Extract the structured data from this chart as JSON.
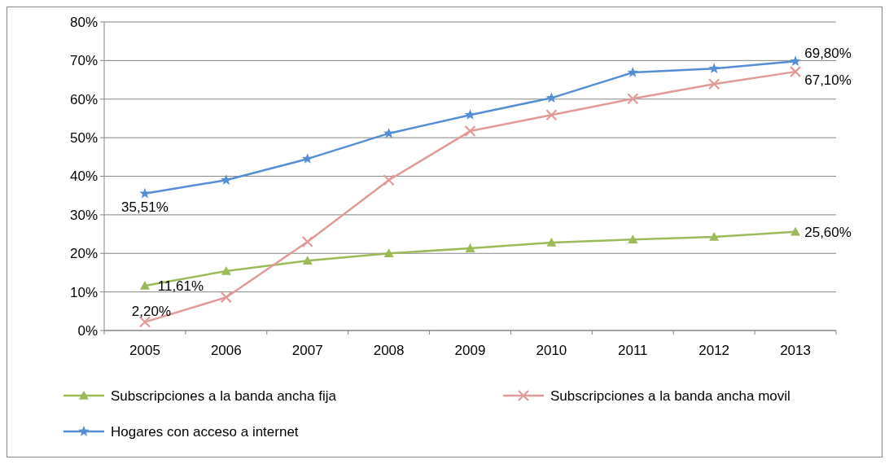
{
  "chart_data": {
    "type": "line",
    "categories": [
      "2005",
      "2006",
      "2007",
      "2008",
      "2009",
      "2010",
      "2011",
      "2012",
      "2013"
    ],
    "ylim": [
      0,
      80
    ],
    "yticks": [
      {
        "value": 0,
        "label": "0%"
      },
      {
        "value": 10,
        "label": "10%"
      },
      {
        "value": 20,
        "label": "20%"
      },
      {
        "value": 30,
        "label": "30%"
      },
      {
        "value": 40,
        "label": "40%"
      },
      {
        "value": 50,
        "label": "50%"
      },
      {
        "value": 60,
        "label": "60%"
      },
      {
        "value": 70,
        "label": "70%"
      },
      {
        "value": 80,
        "label": "80%"
      }
    ],
    "grid": "y",
    "legend": "bottom",
    "series": [
      {
        "name": "Subscripciones a la banda ancha fija",
        "color": "#9bbb59",
        "marker": "triangle",
        "values": [
          11.61,
          15.4,
          18.1,
          20.0,
          21.3,
          22.8,
          23.6,
          24.3,
          25.6
        ],
        "value_labels": [
          "11,61%",
          null,
          null,
          null,
          null,
          null,
          null,
          null,
          "25,60%"
        ]
      },
      {
        "name": "Subscripciones a la banda ancha movil",
        "color": "#e09a98",
        "marker": "cross",
        "values": [
          2.2,
          8.6,
          23.0,
          39.0,
          51.7,
          55.9,
          60.1,
          63.9,
          67.1
        ],
        "value_labels": [
          "2,20%",
          null,
          null,
          null,
          null,
          null,
          null,
          null,
          "67,10%"
        ]
      },
      {
        "name": "Hogares con acceso a internet",
        "color": "#558ed5",
        "marker": "star",
        "values": [
          35.51,
          39.0,
          44.5,
          51.1,
          55.9,
          60.3,
          66.9,
          67.9,
          69.8
        ],
        "value_labels": [
          "35,51%",
          null,
          null,
          null,
          null,
          null,
          null,
          null,
          "69,80%"
        ]
      }
    ]
  }
}
